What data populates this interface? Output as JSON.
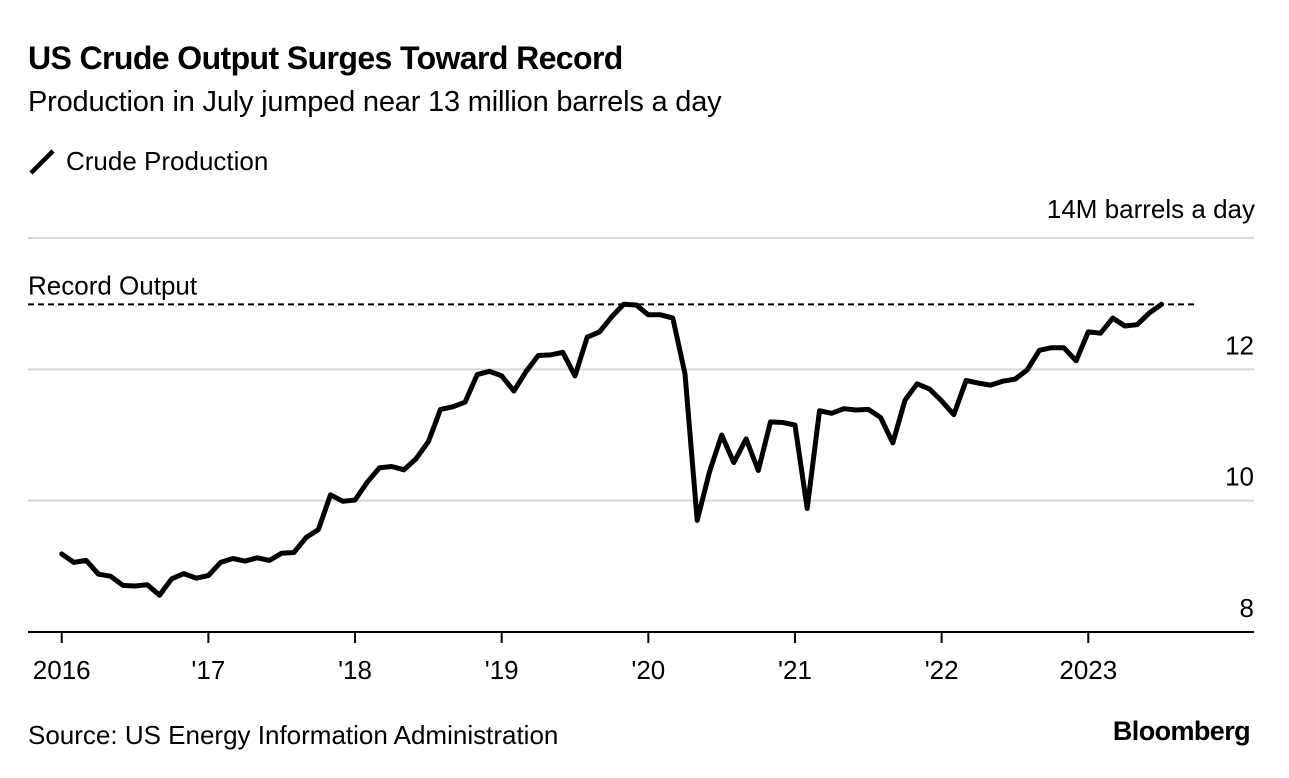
{
  "header": {
    "title": "US Crude Output Surges Toward Record",
    "subtitle": "Production in July jumped near 13 million barrels a day"
  },
  "legend": {
    "label": "Crude Production",
    "icon": "line-swatch-icon",
    "color": "#000000"
  },
  "footer": {
    "source": "Source: US Energy Information Administration",
    "brand": "Bloomberg"
  },
  "chart_data": {
    "type": "line",
    "title": "US Crude Output Surges Toward Record",
    "subtitle": "Production in July jumped near 13 million barrels a day",
    "xlabel": "",
    "ylabel": "14M barrels a day",
    "ylim": [
      8,
      14
    ],
    "xlim": [
      2015.77,
      2024.13
    ],
    "y_ticks": [
      {
        "value": 14,
        "label": ""
      },
      {
        "value": 12,
        "label": "12"
      },
      {
        "value": 10,
        "label": "10"
      },
      {
        "value": 8,
        "label": "8"
      }
    ],
    "x_ticks": [
      {
        "value": 2016,
        "label": "2016"
      },
      {
        "value": 2017,
        "label": "'17"
      },
      {
        "value": 2018,
        "label": "'18"
      },
      {
        "value": 2019,
        "label": "'19"
      },
      {
        "value": 2020,
        "label": "'20"
      },
      {
        "value": 2021,
        "label": "'21"
      },
      {
        "value": 2022,
        "label": "'22"
      },
      {
        "value": 2023,
        "label": "2023"
      }
    ],
    "grid": true,
    "legend": "top-left",
    "reference_line": {
      "y": 12.99,
      "label": "Record Output",
      "style": "dashed"
    },
    "series": [
      {
        "name": "Crude Production",
        "color": "#000000",
        "x": [
          2016.0,
          2016.083,
          2016.167,
          2016.25,
          2016.333,
          2016.417,
          2016.5,
          2016.583,
          2016.667,
          2016.75,
          2016.833,
          2016.917,
          2017.0,
          2017.083,
          2017.167,
          2017.25,
          2017.333,
          2017.417,
          2017.5,
          2017.583,
          2017.667,
          2017.75,
          2017.833,
          2017.917,
          2018.0,
          2018.083,
          2018.167,
          2018.25,
          2018.333,
          2018.417,
          2018.5,
          2018.583,
          2018.667,
          2018.75,
          2018.833,
          2018.917,
          2019.0,
          2019.083,
          2019.167,
          2019.25,
          2019.333,
          2019.417,
          2019.5,
          2019.583,
          2019.667,
          2019.75,
          2019.833,
          2019.917,
          2020.0,
          2020.083,
          2020.167,
          2020.25,
          2020.333,
          2020.417,
          2020.5,
          2020.583,
          2020.667,
          2020.75,
          2020.833,
          2020.917,
          2021.0,
          2021.083,
          2021.167,
          2021.25,
          2021.333,
          2021.417,
          2021.5,
          2021.583,
          2021.667,
          2021.75,
          2021.833,
          2021.917,
          2022.0,
          2022.083,
          2022.167,
          2022.25,
          2022.333,
          2022.417,
          2022.5,
          2022.583,
          2022.667,
          2022.75,
          2022.833,
          2022.917,
          2023.0,
          2023.083,
          2023.167,
          2023.25,
          2023.333,
          2023.417,
          2023.5
        ],
        "values": [
          9.19,
          9.06,
          9.09,
          8.88,
          8.85,
          8.71,
          8.7,
          8.72,
          8.56,
          8.81,
          8.89,
          8.82,
          8.86,
          9.06,
          9.12,
          9.08,
          9.13,
          9.09,
          9.2,
          9.21,
          9.44,
          9.56,
          10.09,
          9.99,
          10.01,
          10.28,
          10.5,
          10.52,
          10.47,
          10.64,
          10.9,
          11.39,
          11.43,
          11.5,
          11.92,
          11.97,
          11.9,
          11.67,
          11.97,
          12.21,
          12.22,
          12.26,
          11.9,
          12.49,
          12.57,
          12.8,
          12.99,
          12.98,
          12.83,
          12.83,
          12.78,
          11.93,
          9.7,
          10.44,
          11.0,
          10.58,
          10.94,
          10.46,
          11.2,
          11.19,
          11.15,
          9.88,
          11.37,
          11.33,
          11.4,
          11.38,
          11.39,
          11.27,
          10.88,
          11.53,
          11.78,
          11.7,
          11.52,
          11.31,
          11.83,
          11.79,
          11.76,
          11.82,
          11.85,
          11.99,
          12.29,
          12.33,
          12.33,
          12.13,
          12.57,
          12.55,
          12.78,
          12.66,
          12.68,
          12.86,
          12.99
        ]
      }
    ]
  }
}
